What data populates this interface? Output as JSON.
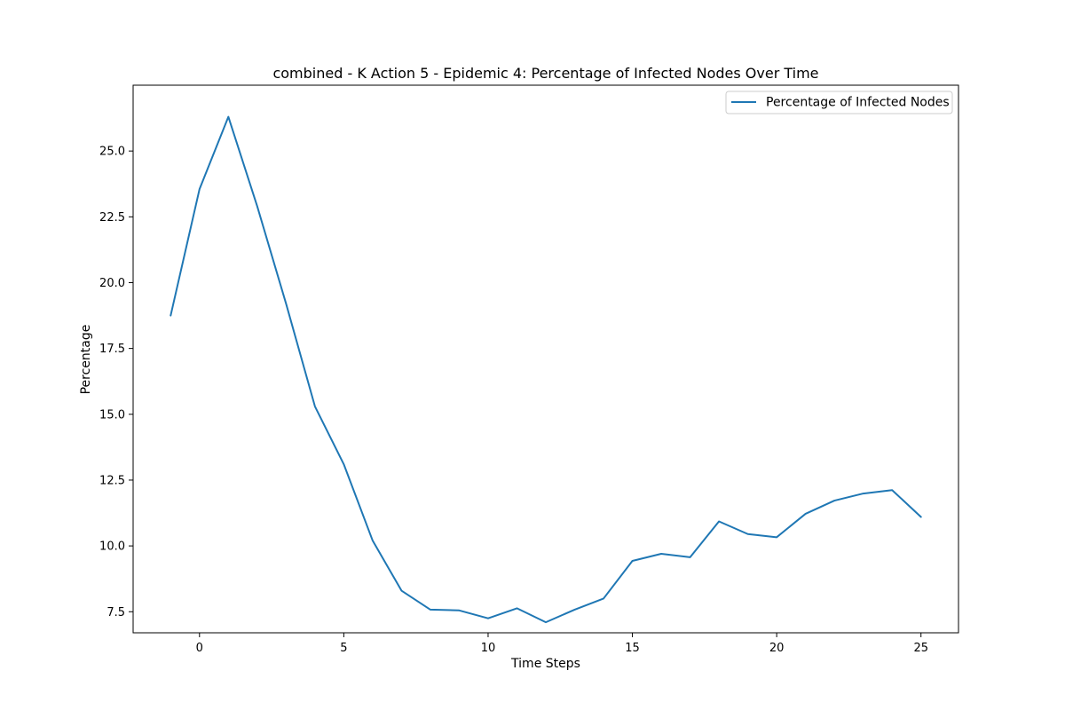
{
  "chart_data": {
    "type": "line",
    "title": "combined - K Action 5 - Epidemic 4: Percentage of Infected Nodes Over Time",
    "xlabel": "Time Steps",
    "ylabel": "Percentage",
    "xlim": [
      -2.3,
      26.3
    ],
    "ylim": [
      6.7,
      27.5
    ],
    "xticks": [
      0,
      5,
      10,
      15,
      20,
      25
    ],
    "yticks": [
      7.5,
      10.0,
      12.5,
      15.0,
      17.5,
      20.0,
      22.5,
      25.0
    ],
    "ytick_labels": [
      "7.5",
      "10.0",
      "12.5",
      "15.0",
      "17.5",
      "20.0",
      "22.5",
      "25.0"
    ],
    "grid": false,
    "legend": {
      "position": "top-right",
      "entries": [
        "Percentage of Infected Nodes"
      ]
    },
    "series": [
      {
        "name": "Percentage of Infected Nodes",
        "color": "#1f77b4",
        "x": [
          -1,
          0,
          1,
          2,
          3,
          4,
          5,
          6,
          7,
          8,
          9,
          10,
          11,
          12,
          13,
          14,
          15,
          16,
          17,
          18,
          19,
          20,
          21,
          22,
          23,
          24,
          25
        ],
        "y": [
          18.75,
          23.55,
          26.3,
          22.9,
          19.2,
          15.3,
          13.1,
          10.2,
          8.3,
          7.58,
          7.55,
          7.25,
          7.63,
          7.1,
          7.58,
          8.0,
          9.43,
          9.7,
          9.57,
          10.93,
          10.45,
          10.33,
          11.22,
          11.72,
          11.99,
          12.12,
          11.1
        ]
      }
    ]
  }
}
